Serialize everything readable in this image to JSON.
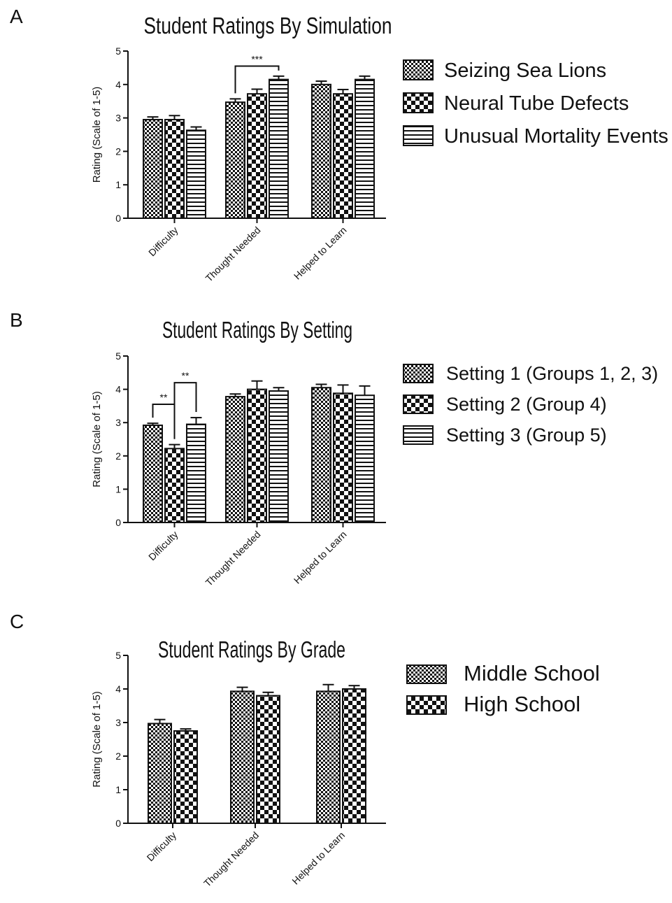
{
  "chart_data": [
    {
      "panel_label": "A",
      "type": "bar",
      "title": "Student Ratings By Simulation",
      "ylabel": "Rating (Scale of 1-5)",
      "ylim": [
        0,
        5
      ],
      "yticks": [
        "0",
        "1",
        "2",
        "3",
        "4",
        "5"
      ],
      "categories": [
        "Difficulty",
        "Thought Needed",
        "Helped to Learn"
      ],
      "legend_position": "right",
      "series": [
        {
          "name": "Seizing Sea Lions",
          "pattern": "fine-check",
          "values": [
            2.95,
            3.47,
            4.0
          ],
          "errors": [
            0.08,
            0.1,
            0.1
          ]
        },
        {
          "name": "Neural Tube Defects",
          "pattern": "big-check",
          "values": [
            2.95,
            3.72,
            3.72
          ],
          "errors": [
            0.12,
            0.14,
            0.13
          ]
        },
        {
          "name": "Unusual Mortality Events",
          "pattern": "stripes",
          "values": [
            2.63,
            4.15,
            4.15
          ],
          "errors": [
            0.1,
            0.1,
            0.1
          ]
        }
      ],
      "significance": [
        {
          "category": 1,
          "from_series": 0,
          "to_series": 2,
          "label": "***"
        }
      ]
    },
    {
      "panel_label": "B",
      "type": "bar",
      "title": "Student Ratings By Setting",
      "ylabel": "Rating (Scale of 1-5)",
      "ylim": [
        0,
        5
      ],
      "yticks": [
        "0",
        "1",
        "2",
        "3",
        "4",
        "5"
      ],
      "categories": [
        "Difficulty",
        "Thought Needed",
        "Helped to Learn"
      ],
      "legend_position": "right",
      "series": [
        {
          "name": "Setting 1 (Groups 1, 2, 3)",
          "pattern": "fine-check",
          "values": [
            2.92,
            3.78,
            4.05
          ],
          "errors": [
            0.06,
            0.08,
            0.1
          ]
        },
        {
          "name": "Setting 2 (Group 4)",
          "pattern": "big-check",
          "values": [
            2.22,
            4.0,
            3.88
          ],
          "errors": [
            0.12,
            0.25,
            0.25
          ]
        },
        {
          "name": "Setting 3 (Group 5)",
          "pattern": "stripes",
          "values": [
            2.95,
            3.95,
            3.82
          ],
          "errors": [
            0.2,
            0.1,
            0.28
          ]
        }
      ],
      "significance": [
        {
          "category": 0,
          "from_series": 0,
          "to_series": 1,
          "label": "**"
        },
        {
          "category": 0,
          "from_series": 1,
          "to_series": 2,
          "label": "**"
        }
      ]
    },
    {
      "panel_label": "C",
      "type": "bar",
      "title": "Student Ratings By Grade",
      "ylabel": "Rating (Scale of 1-5)",
      "ylim": [
        0,
        5
      ],
      "yticks": [
        "0",
        "1",
        "2",
        "3",
        "4",
        "5"
      ],
      "categories": [
        "Difficulty",
        "Thought Needed",
        "Helped to Learn"
      ],
      "legend_position": "right",
      "series": [
        {
          "name": "Middle School",
          "pattern": "fine-check",
          "values": [
            2.97,
            3.93,
            3.93
          ],
          "errors": [
            0.12,
            0.12,
            0.2
          ]
        },
        {
          "name": "High School",
          "pattern": "big-check",
          "values": [
            2.75,
            3.8,
            4.0
          ],
          "errors": [
            0.06,
            0.1,
            0.1
          ]
        }
      ],
      "significance": []
    }
  ]
}
